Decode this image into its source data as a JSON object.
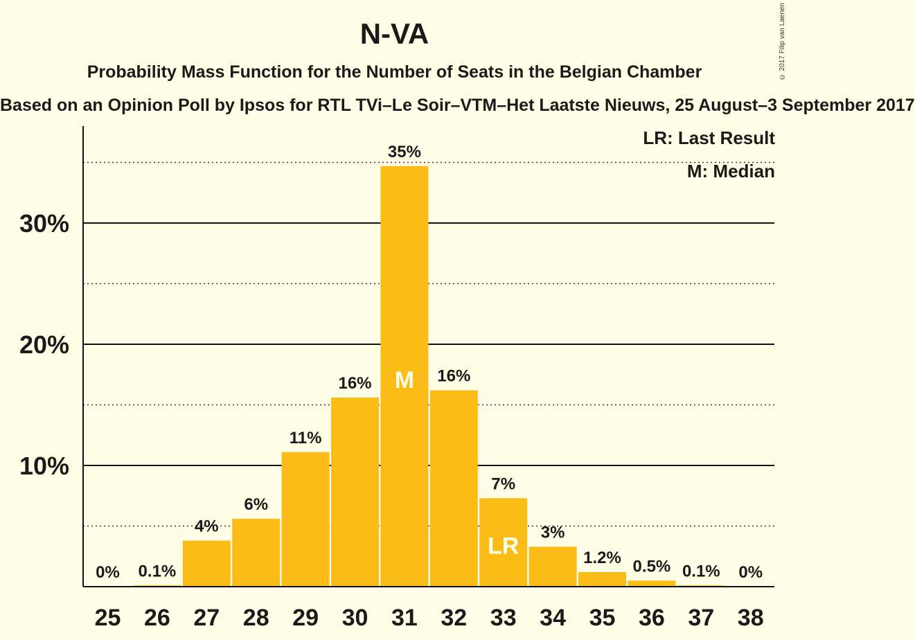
{
  "title": "N-VA",
  "subtitle": "Probability Mass Function for the Number of Seats in the Belgian Chamber",
  "subsubtitle": "Based on an Opinion Poll by Ipsos for RTL TVi–Le Soir–VTM–Het Laatste Nieuws, 25 August–3 September 2017",
  "copyright": "© 2017 Filip van Laenen",
  "legend": {
    "lr": "LR: Last Result",
    "m": "M: Median"
  },
  "colors": {
    "bar": "#FBBC17",
    "background": "#FFFDE5",
    "marker_text": "#FFFDE5"
  },
  "chart_data": {
    "type": "bar",
    "title": "N-VA",
    "categories": [
      "25",
      "26",
      "27",
      "28",
      "29",
      "30",
      "31",
      "32",
      "33",
      "34",
      "35",
      "36",
      "37",
      "38"
    ],
    "values": [
      0,
      0.1,
      3.8,
      5.6,
      11.1,
      15.6,
      34.7,
      16.2,
      7.3,
      3.3,
      1.2,
      0.5,
      0.1,
      0
    ],
    "data_labels": [
      "0%",
      "0.1%",
      "4%",
      "6%",
      "11%",
      "16%",
      "35%",
      "16%",
      "7%",
      "3%",
      "1.2%",
      "0.5%",
      "0.1%",
      "0%"
    ],
    "markers": {
      "31": "M",
      "33": "LR"
    },
    "ylim": [
      0,
      38
    ],
    "yticks": [
      10,
      20,
      30
    ],
    "ytick_labels": [
      "10%",
      "20%",
      "30%"
    ],
    "minor_gridlines": [
      5,
      15,
      25,
      35
    ],
    "grid": true,
    "legend_position": "top-right"
  }
}
